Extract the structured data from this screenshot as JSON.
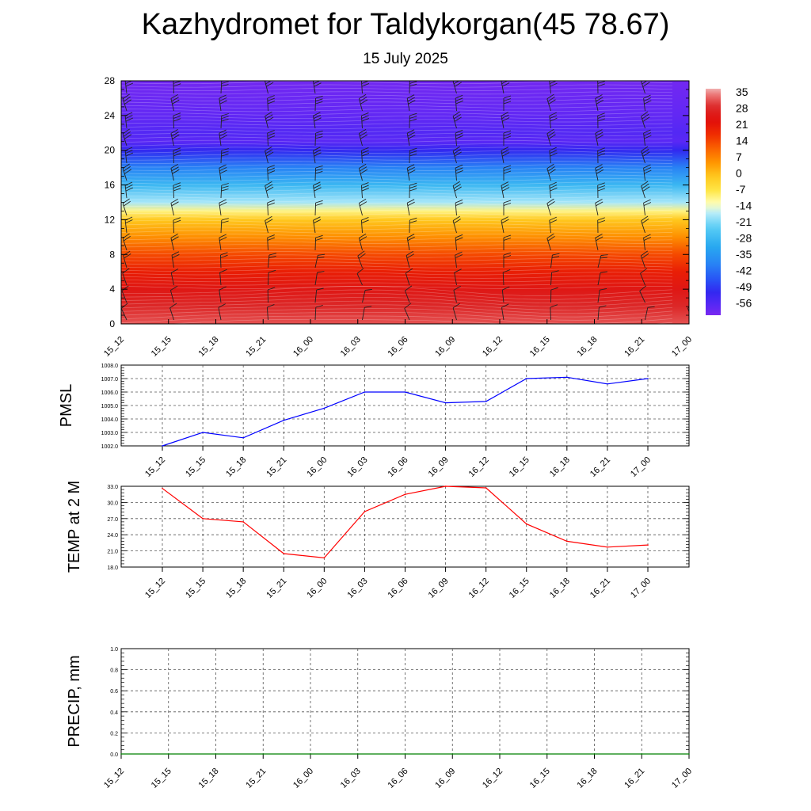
{
  "title": "Kazhydromet for Taldykorgan(45 78.67)",
  "subtitle": "15 July 2025",
  "chart_data": [
    {
      "type": "heatmap",
      "name": "vertical temperature cross-section with wind barbs",
      "x": [
        "15_12",
        "15_15",
        "15_18",
        "15_21",
        "16_00",
        "16_03",
        "16_06",
        "16_09",
        "16_12",
        "16_15",
        "16_18",
        "16_21",
        "17_00"
      ],
      "y_ticks": [
        0,
        4,
        8,
        12,
        16,
        20,
        24,
        28
      ],
      "ylim": [
        0,
        28
      ],
      "colorbar": {
        "labels": [
          "35",
          "28",
          "21",
          "14",
          "7",
          "0",
          "-7",
          "-14",
          "-21",
          "-28",
          "-35",
          "-42",
          "-49",
          "-56"
        ],
        "range": [
          -60,
          38
        ]
      },
      "profile": {
        "levels": [
          0,
          2,
          4,
          6,
          8,
          10,
          12,
          13,
          14,
          16,
          18,
          20,
          21,
          22,
          24,
          26,
          28
        ],
        "temperature": [
          33,
          30,
          26,
          21,
          15,
          7,
          0,
          -9,
          -17,
          -27,
          -38,
          -50,
          -56,
          -55,
          -57,
          -58,
          -59
        ]
      }
    },
    {
      "type": "line",
      "ylabel": "PMSL",
      "x": [
        "15_12",
        "15_15",
        "15_18",
        "15_21",
        "16_00",
        "16_03",
        "16_06",
        "16_09",
        "16_12",
        "16_15",
        "16_18",
        "16_21",
        "17_00"
      ],
      "values": [
        1002.0,
        1003.0,
        1002.6,
        1003.9,
        1004.8,
        1006.0,
        1006.0,
        1005.2,
        1005.3,
        1007.0,
        1007.1,
        1006.6,
        1007.0
      ],
      "y_ticks": [
        "1002.0",
        "1003.0",
        "1004.0",
        "1005.0",
        "1006.0",
        "1007.0",
        "1008.0"
      ],
      "ylim": [
        1002,
        1008
      ],
      "color": "#0000ff"
    },
    {
      "type": "line",
      "ylabel": "TEMP at 2 M",
      "x": [
        "15_12",
        "15_15",
        "15_18",
        "15_21",
        "16_00",
        "16_03",
        "16_06",
        "16_09",
        "16_12",
        "16_15",
        "16_18",
        "16_21",
        "17_00"
      ],
      "values": [
        32.6,
        27.0,
        26.4,
        20.5,
        19.7,
        28.3,
        31.5,
        33.0,
        32.7,
        26.0,
        22.8,
        21.7,
        22.1
      ],
      "y_ticks": [
        "18.0",
        "21.0",
        "24.0",
        "27.0",
        "30.0",
        "33.0"
      ],
      "ylim": [
        18,
        33
      ],
      "color": "#ff0000"
    },
    {
      "type": "line",
      "ylabel": "PRECIP, mm",
      "x": [
        "15_12",
        "15_15",
        "15_18",
        "15_21",
        "16_00",
        "16_03",
        "16_06",
        "16_09",
        "16_12",
        "16_15",
        "16_18",
        "16_21",
        "17_00"
      ],
      "values": [
        0,
        0,
        0,
        0,
        0,
        0,
        0,
        0,
        0,
        0,
        0,
        0,
        0
      ],
      "y_ticks": [
        "0.0",
        "0.2",
        "0.4",
        "0.6",
        "0.8",
        "1.0"
      ],
      "ylim": [
        0,
        1
      ],
      "color": "#008000"
    }
  ]
}
